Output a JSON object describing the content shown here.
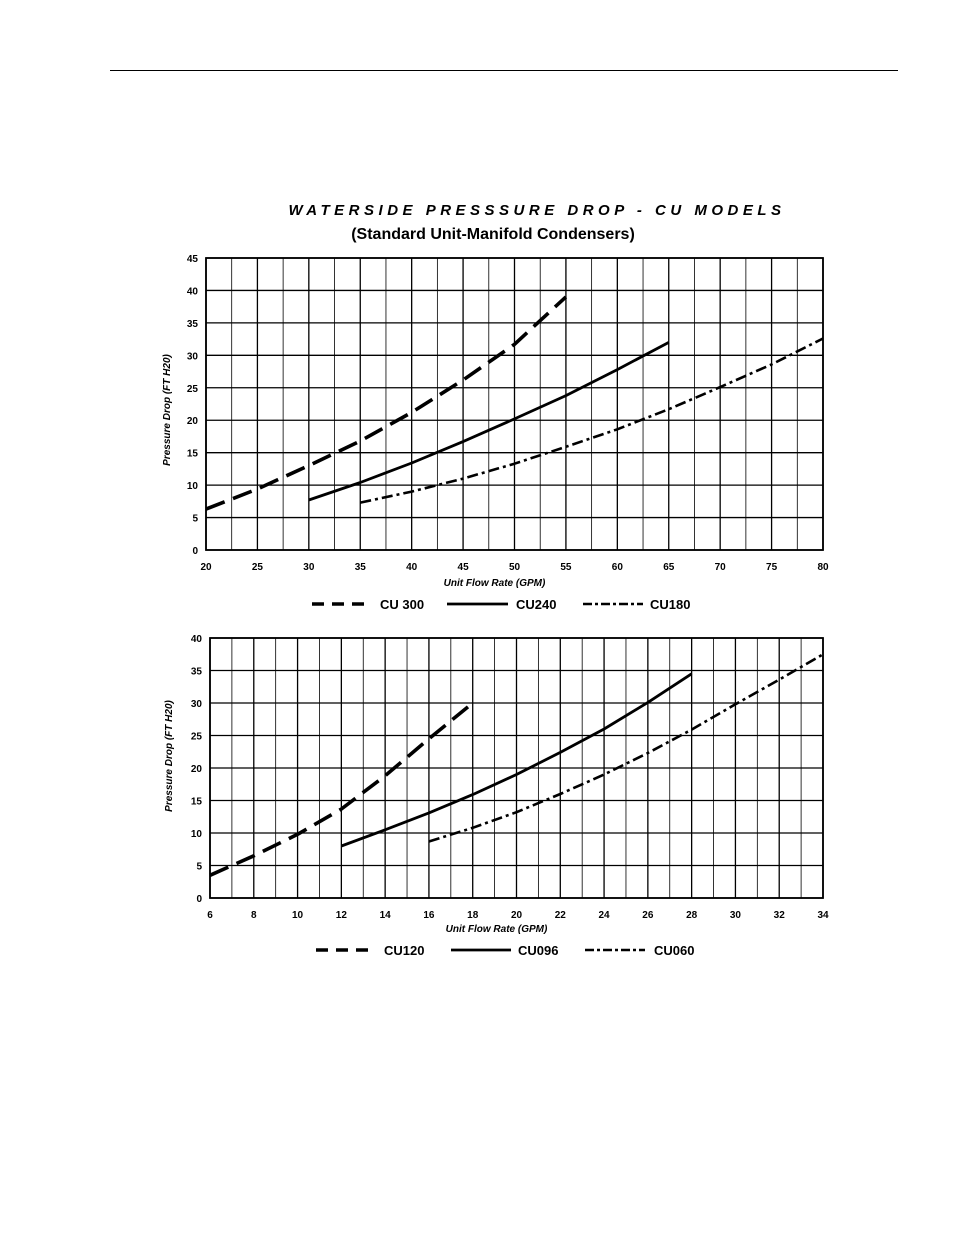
{
  "header": {
    "title": "WATERSIDE PRESSSURE DROP - CU MODELS",
    "subtitle": "(Standard Unit-Manifold Condensers)"
  },
  "chart_data": [
    {
      "type": "line",
      "xlabel": "Unit Flow Rate (GPM)",
      "ylabel": "Pressure Drop (FT H20)",
      "xlim": [
        20,
        80
      ],
      "ylim": [
        0,
        45
      ],
      "xticks": [
        20,
        25,
        30,
        35,
        40,
        45,
        50,
        55,
        60,
        65,
        70,
        75,
        80
      ],
      "yticks": [
        0,
        5,
        10,
        15,
        20,
        25,
        30,
        35,
        40,
        45
      ],
      "grid": true,
      "legend": "bottom",
      "series": [
        {
          "name": "CU 300",
          "style": "long-dash",
          "x": [
            20,
            25,
            30,
            35,
            40,
            45,
            50,
            55
          ],
          "y": [
            6.3,
            9.4,
            13.0,
            16.8,
            21.2,
            26.2,
            31.7,
            39.0
          ]
        },
        {
          "name": "CU240",
          "style": "solid",
          "x": [
            30,
            35,
            40,
            45,
            50,
            55,
            60,
            65
          ],
          "y": [
            7.7,
            10.4,
            13.4,
            16.7,
            20.2,
            23.8,
            27.8,
            32.0
          ]
        },
        {
          "name": "CU180",
          "style": "dash-dot",
          "x": [
            35,
            40,
            45,
            50,
            55,
            60,
            65,
            70,
            75,
            80
          ],
          "y": [
            7.3,
            9.0,
            11.0,
            13.3,
            15.9,
            18.6,
            21.7,
            25.1,
            28.6,
            32.6
          ]
        }
      ]
    },
    {
      "type": "line",
      "xlabel": "Unit Flow Rate (GPM)",
      "ylabel": "Pressure Drop (FT H20)",
      "xlim": [
        6,
        34
      ],
      "ylim": [
        0,
        40
      ],
      "xticks": [
        6,
        8,
        10,
        12,
        14,
        16,
        18,
        20,
        22,
        24,
        26,
        28,
        30,
        32,
        34
      ],
      "yticks": [
        0,
        5,
        10,
        15,
        20,
        25,
        30,
        35,
        40
      ],
      "grid": true,
      "legend": "bottom",
      "series": [
        {
          "name": "CU120",
          "style": "long-dash",
          "x": [
            6,
            8,
            10,
            12,
            14,
            16,
            18
          ],
          "y": [
            3.5,
            6.5,
            9.8,
            13.7,
            18.8,
            24.5,
            30.0
          ]
        },
        {
          "name": "CU096",
          "style": "solid",
          "x": [
            12,
            14,
            16,
            18,
            20,
            22,
            24,
            26,
            28
          ],
          "y": [
            8.0,
            10.5,
            13.1,
            15.9,
            19.0,
            22.4,
            26.0,
            30.1,
            34.5
          ]
        },
        {
          "name": "CU060",
          "style": "dash-dot",
          "x": [
            16,
            18,
            20,
            22,
            24,
            26,
            28,
            30,
            32,
            34
          ],
          "y": [
            8.7,
            10.8,
            13.2,
            16.0,
            19.0,
            22.3,
            25.9,
            29.8,
            33.6,
            37.5
          ]
        }
      ]
    }
  ]
}
